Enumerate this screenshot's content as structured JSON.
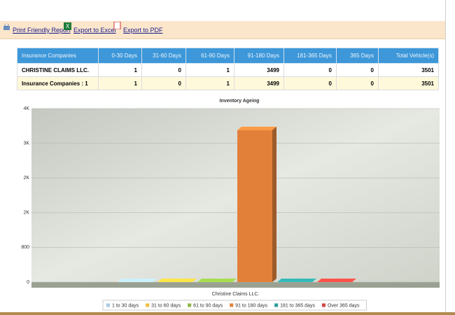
{
  "toolbar": {
    "links": [
      "Print Friendly Report",
      "Export to Excel",
      "Export to PDF"
    ]
  },
  "table": {
    "headers": [
      "Insurance Companies",
      "0-30 Days",
      "31-60 Days",
      "61-90 Days",
      "91-180 Days",
      "181-365 Days",
      "365 Days",
      "Total Vehicle(s)"
    ],
    "rows": [
      [
        "CHRISTINE CLAIMS LLC.",
        1,
        0,
        1,
        3499,
        0,
        0,
        3501
      ],
      [
        "Insurance Companies : 1",
        1,
        0,
        1,
        3499,
        0,
        0,
        3501
      ]
    ]
  },
  "chart_data": {
    "type": "bar",
    "title": "Inventory Ageing",
    "categories": [
      "Christine Claims LLC."
    ],
    "series": [
      {
        "name": "1 to 30 days",
        "color": "#a9c9e6",
        "values": [
          1
        ]
      },
      {
        "name": "31 to 60 days",
        "color": "#f0bf3c",
        "values": [
          0
        ]
      },
      {
        "name": "61 to 90 days",
        "color": "#8cb843",
        "values": [
          1
        ]
      },
      {
        "name": "91 to 180 days",
        "color": "#e2803a",
        "values": [
          3499
        ]
      },
      {
        "name": "181 to 365 days",
        "color": "#2b9b9b",
        "values": [
          0
        ]
      },
      {
        "name": "Over 365 days",
        "color": "#d2453f",
        "values": [
          0
        ]
      }
    ],
    "ylim": [
      0,
      4000
    ],
    "yticks": [
      0,
      800,
      {
        "value": 1600,
        "label": "2K"
      },
      {
        "value": 2400,
        "label": "2K"
      },
      {
        "value": 3200,
        "label": "3K"
      },
      {
        "value": 4000,
        "label": "4K"
      }
    ],
    "grid": true,
    "legend": "bottom"
  }
}
